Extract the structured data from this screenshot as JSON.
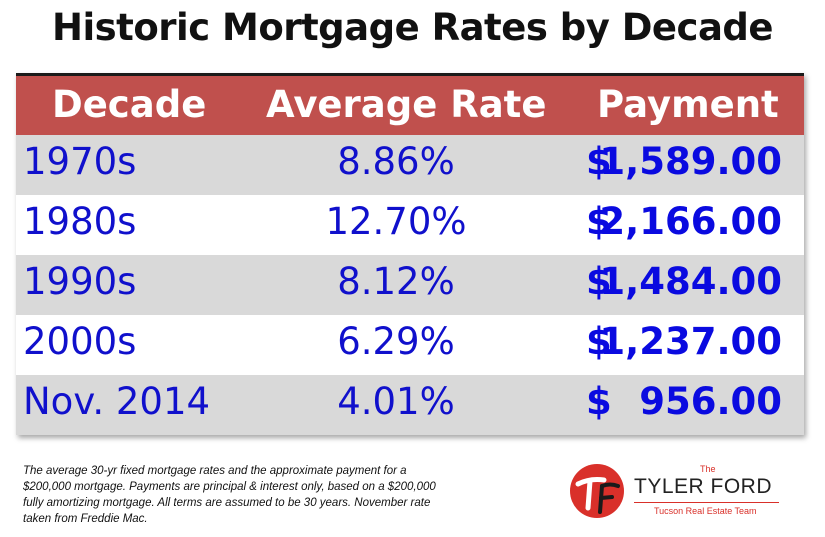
{
  "title": "Historic Mortgage Rates by Decade",
  "chart_data": {
    "type": "table",
    "columns": [
      "Decade",
      "Average Rate",
      "Payment"
    ],
    "rows": [
      {
        "decade": "1970s",
        "rate": "8.86%",
        "dollar": "$",
        "payment": "1,589.00"
      },
      {
        "decade": "1980s",
        "rate": "12.70%",
        "dollar": "$",
        "payment": "2,166.00"
      },
      {
        "decade": "1990s",
        "rate": "8.12%",
        "dollar": "$",
        "payment": "1,484.00"
      },
      {
        "decade": "2000s",
        "rate": "6.29%",
        "dollar": "$",
        "payment": "1,237.00"
      },
      {
        "decade": "Nov. 2014",
        "rate": "4.01%",
        "dollar": "$",
        "payment": "956.00"
      }
    ]
  },
  "footnote": "The average 30-yr fixed mortgage rates and the approximate payment for a $200,000 mortgage. Payments are principal & interest only, based on a $200,000 fully amortizing mortgage. All terms are assumed to be 30 years. November rate taken from Freddie Mac.",
  "logo": {
    "the": "The",
    "name": "TYLER FORD",
    "subtitle": "Tucson Real Estate Team",
    "mark": "TF"
  },
  "colors": {
    "header_bg": "#c0504d",
    "alt_row_bg": "#d9d9d9",
    "text_blue": "#1010cc",
    "logo_red": "#d9302a"
  }
}
